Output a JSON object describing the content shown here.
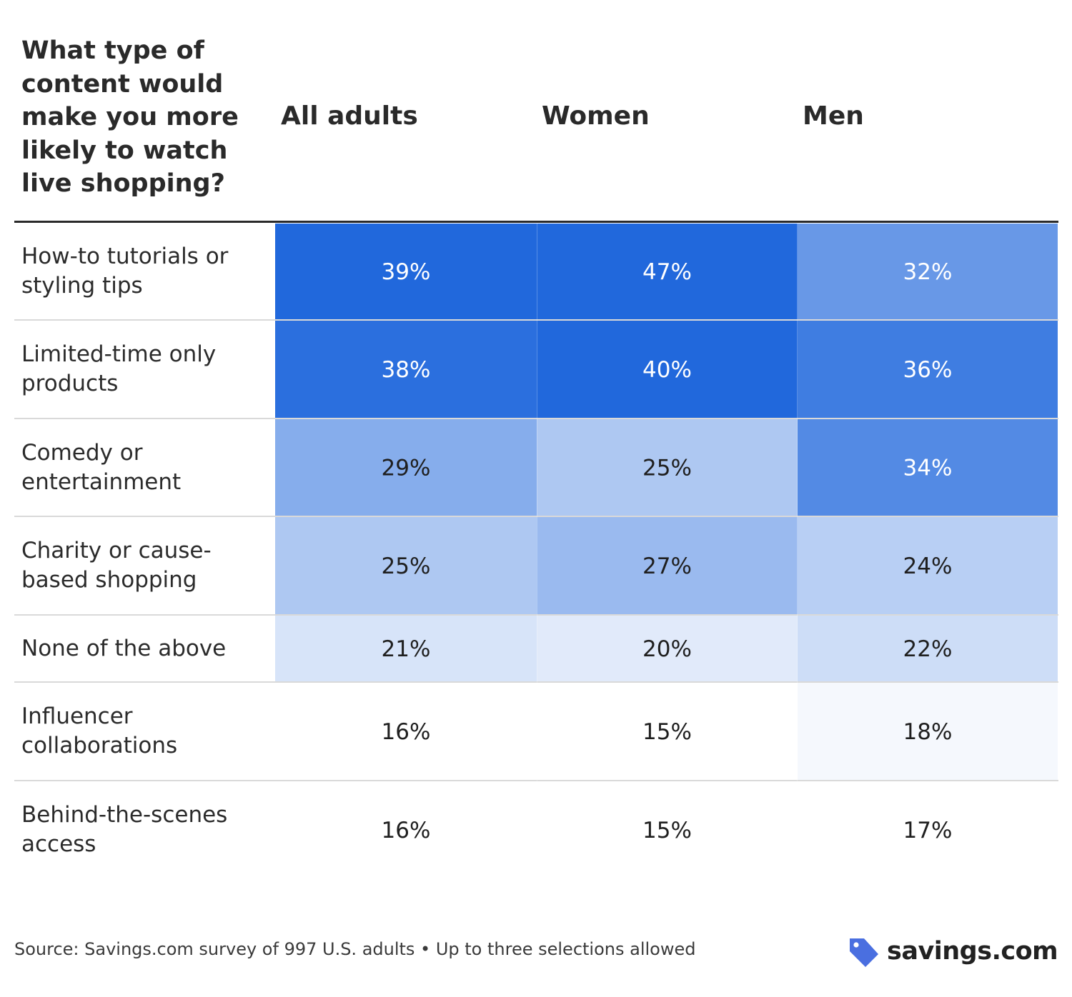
{
  "chart_data": {
    "type": "table",
    "title": "What type of content would make you more likely to watch live shopping?",
    "columns": [
      "All adults",
      "Women",
      "Men"
    ],
    "rows": [
      {
        "label": "How-to tutorials or styling tips",
        "values": [
          39,
          47,
          32
        ],
        "display": [
          "39%",
          "47%",
          "32%"
        ]
      },
      {
        "label": "Limited-time only products",
        "values": [
          38,
          40,
          36
        ],
        "display": [
          "38%",
          "40%",
          "36%"
        ]
      },
      {
        "label": "Comedy or entertainment",
        "values": [
          29,
          25,
          34
        ],
        "display": [
          "29%",
          "25%",
          "34%"
        ]
      },
      {
        "label": "Charity or cause-based shopping",
        "values": [
          25,
          27,
          24
        ],
        "display": [
          "25%",
          "27%",
          "24%"
        ]
      },
      {
        "label": "None of the above",
        "values": [
          21,
          20,
          22
        ],
        "display": [
          "21%",
          "20%",
          "22%"
        ]
      },
      {
        "label": "Influencer collaborations",
        "values": [
          16,
          15,
          18
        ],
        "display": [
          "16%",
          "15%",
          "18%"
        ]
      },
      {
        "label": "Behind-the-scenes access",
        "values": [
          16,
          15,
          17
        ],
        "display": [
          "16%",
          "15%",
          "17%"
        ]
      }
    ],
    "color_scale": {
      "low": "#ffffff",
      "high": "#2168dc",
      "min": 17,
      "max": 39
    }
  },
  "footer": {
    "source": "Source: Savings.com survey of 997 U.S. adults • Up to three selections allowed",
    "brand": "savings.com",
    "brand_color": "#4a6fe0"
  }
}
